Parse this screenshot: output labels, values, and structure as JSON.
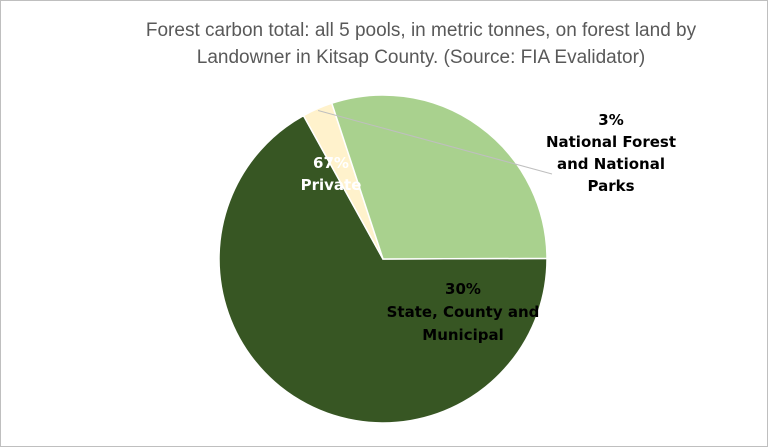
{
  "chart_data": {
    "type": "pie",
    "title_lines": [
      "Forest carbon total: all 5 pools, in metric tonnes, on forest land by",
      "Landowner in Kitsap County.  (Source: FIA Evalidator)"
    ],
    "slices": [
      {
        "name": "Private",
        "value": 67,
        "percent_label": "67%",
        "label_lines": [
          "67%",
          "Private"
        ],
        "color": "#375623",
        "text_color": "#ffffff"
      },
      {
        "name": "National Forest and National Parks",
        "value": 3,
        "percent_label": "3%",
        "label_lines": [
          "3%",
          "National Forest",
          "and National",
          "Parks"
        ],
        "color": "#fff2cc",
        "text_color": "#000000"
      },
      {
        "name": "State, County and Municipal",
        "value": 30,
        "percent_label": "30%",
        "label_lines": [
          "30%",
          "State, County and",
          "Municipal"
        ],
        "color": "#a9d18e",
        "text_color": "#000000"
      }
    ]
  }
}
